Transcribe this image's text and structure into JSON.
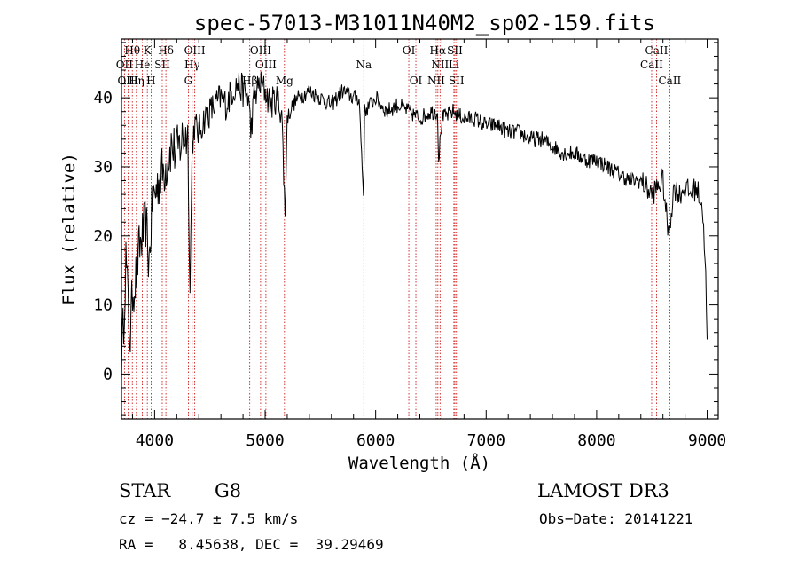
{
  "chart_data": {
    "type": "line",
    "title": "spec-57013-M31011N40M2_sp02-159.fits",
    "xlabel": "Wavelength (Å)",
    "ylabel": "Flux (relative)",
    "xlim": [
      3700,
      9100
    ],
    "ylim": [
      -6.5,
      48.5
    ],
    "x_ticks": [
      4000,
      5000,
      6000,
      7000,
      8000,
      9000
    ],
    "y_ticks": [
      0,
      10,
      20,
      30,
      40
    ],
    "series": [
      {
        "name": "flux",
        "x": [
          3700,
          3720,
          3740,
          3760,
          3780,
          3800,
          3830,
          3860,
          3890,
          3920,
          3950,
          3980,
          4020,
          4060,
          4100,
          4150,
          4200,
          4250,
          4300,
          4320,
          4340,
          4360,
          4400,
          4450,
          4500,
          4550,
          4600,
          4650,
          4700,
          4750,
          4800,
          4850,
          4870,
          4900,
          4950,
          5000,
          5050,
          5100,
          5150,
          5180,
          5200,
          5250,
          5300,
          5400,
          5500,
          5600,
          5700,
          5800,
          5850,
          5890,
          5900,
          5950,
          6000,
          6100,
          6200,
          6300,
          6400,
          6500,
          6560,
          6570,
          6600,
          6700,
          6800,
          6900,
          7000,
          7100,
          7200,
          7300,
          7400,
          7500,
          7600,
          7700,
          7800,
          7900,
          8000,
          8100,
          8200,
          8300,
          8400,
          8450,
          8500,
          8550,
          8600,
          8650,
          8700,
          8750,
          8800,
          8850,
          8900,
          8950,
          8980,
          9000
        ],
        "y": [
          2,
          8,
          17,
          10,
          5,
          12,
          14,
          18,
          20,
          22,
          16,
          25,
          27,
          29,
          30,
          33,
          32,
          34,
          35,
          12,
          33,
          36,
          35,
          37,
          38,
          39,
          40,
          39,
          41,
          42,
          41,
          40,
          35,
          40,
          42,
          41,
          39,
          40,
          38,
          23,
          37,
          39,
          40,
          41,
          40,
          39,
          41,
          40,
          40,
          26,
          38,
          39,
          40,
          38,
          39,
          38,
          37,
          38,
          38,
          31,
          37,
          38,
          37,
          37,
          36,
          36,
          35,
          35,
          34,
          34,
          33,
          32,
          32,
          31,
          31,
          30,
          29,
          28,
          28,
          27,
          26,
          27,
          28,
          20,
          27,
          26,
          27,
          26,
          27,
          25,
          18,
          5
        ]
      }
    ],
    "spectral_lines": [
      {
        "name": "Hθ",
        "wavelength": 3798,
        "tier": 1
      },
      {
        "name": "K",
        "wavelength": 3934,
        "tier": 1
      },
      {
        "name": "Hδ",
        "wavelength": 4102,
        "tier": 1
      },
      {
        "name": "OIII",
        "wavelength": 4363,
        "tier": 1
      },
      {
        "name": "OIII",
        "wavelength": 4959,
        "tier": 1
      },
      {
        "name": "OI",
        "wavelength": 6300,
        "tier": 1
      },
      {
        "name": "Hα",
        "wavelength": 6563,
        "tier": 1
      },
      {
        "name": "SII",
        "wavelength": 6717,
        "tier": 1
      },
      {
        "name": "CaII",
        "wavelength": 8542,
        "tier": 1
      },
      {
        "name": "OII",
        "wavelength": 3727,
        "tier": 2
      },
      {
        "name": "He",
        "wavelength": 3889,
        "tier": 2
      },
      {
        "name": "SII",
        "wavelength": 4069,
        "tier": 2
      },
      {
        "name": "Hγ",
        "wavelength": 4340,
        "tier": 2
      },
      {
        "name": "OIII",
        "wavelength": 5007,
        "tier": 2
      },
      {
        "name": "Na",
        "wavelength": 5893,
        "tier": 2
      },
      {
        "name": "NII",
        "wavelength": 6583,
        "tier": 2
      },
      {
        "name": "Li",
        "wavelength": 6708,
        "tier": 2
      },
      {
        "name": "CaII",
        "wavelength": 8498,
        "tier": 2
      },
      {
        "name": "OIII",
        "wavelength": 3760,
        "tier": 3
      },
      {
        "name": "Hη",
        "wavelength": 3835,
        "tier": 3
      },
      {
        "name": "H",
        "wavelength": 3968,
        "tier": 3
      },
      {
        "name": "G",
        "wavelength": 4305,
        "tier": 3
      },
      {
        "name": "Hβ",
        "wavelength": 4861,
        "tier": 3
      },
      {
        "name": "Mg",
        "wavelength": 5175,
        "tier": 3
      },
      {
        "name": "OI",
        "wavelength": 6364,
        "tier": 3
      },
      {
        "name": "NII",
        "wavelength": 6548,
        "tier": 3
      },
      {
        "name": "SII",
        "wavelength": 6731,
        "tier": 3
      },
      {
        "name": "CaII",
        "wavelength": 8662,
        "tier": 3
      }
    ]
  },
  "info": {
    "class": "STAR",
    "subclass": "G8",
    "survey": "LAMOST DR3",
    "cz": "cz = −24.7 ± 7.5 km/s",
    "obs_date": "Obs−Date: 20141221",
    "radec": "RA =   8.45638, DEC =  39.29469"
  },
  "colors": {
    "line_marker": "#cc0000",
    "spectrum": "#000000"
  }
}
